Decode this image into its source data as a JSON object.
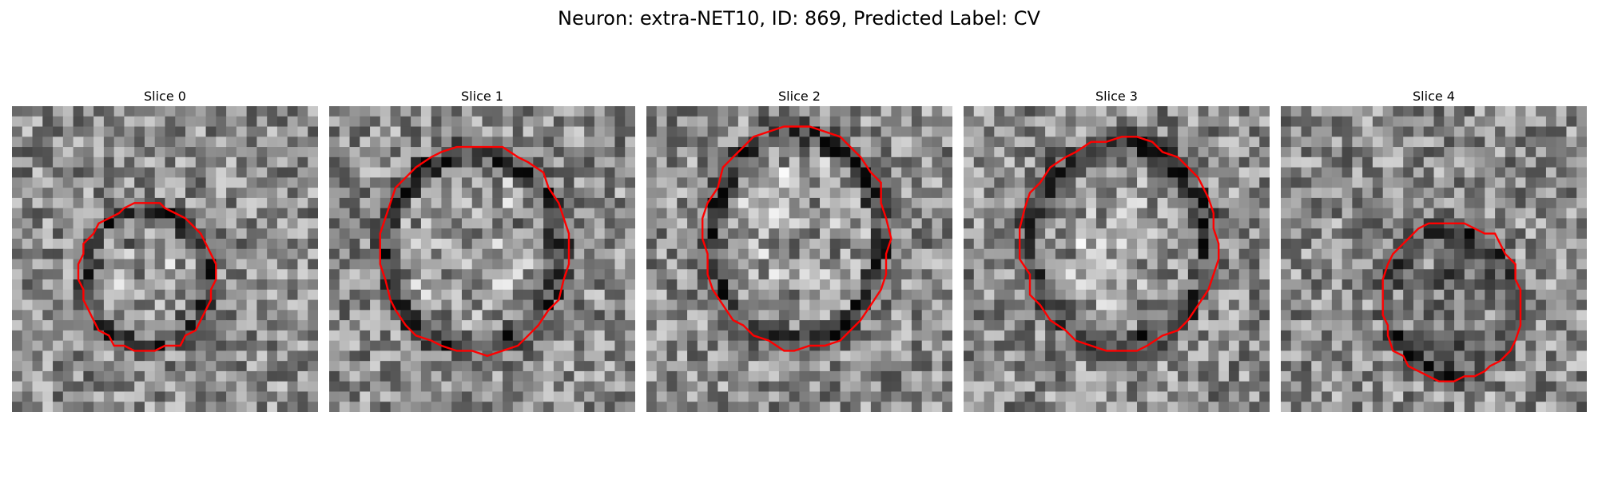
{
  "figure": {
    "title": "Neuron: extra-NET10, ID: 869, Predicted Label: CV",
    "contour_color": "#ff0000"
  },
  "slices": [
    {
      "label": "Slice 0",
      "seed": 11,
      "center": [
        0.44,
        0.56
      ],
      "radius": [
        0.22,
        0.24
      ],
      "blob": 0.55
    },
    {
      "label": "Slice 1",
      "seed": 23,
      "center": [
        0.47,
        0.47
      ],
      "radius": [
        0.31,
        0.34
      ],
      "blob": 0.62
    },
    {
      "label": "Slice 2",
      "seed": 37,
      "center": [
        0.49,
        0.43
      ],
      "radius": [
        0.3,
        0.37
      ],
      "blob": 0.66
    },
    {
      "label": "Slice 3",
      "seed": 41,
      "center": [
        0.51,
        0.45
      ],
      "radius": [
        0.32,
        0.35
      ],
      "blob": 0.62
    },
    {
      "label": "Slice 4",
      "seed": 59,
      "center": [
        0.56,
        0.64
      ],
      "radius": [
        0.23,
        0.26
      ],
      "blob": 0.38
    }
  ]
}
